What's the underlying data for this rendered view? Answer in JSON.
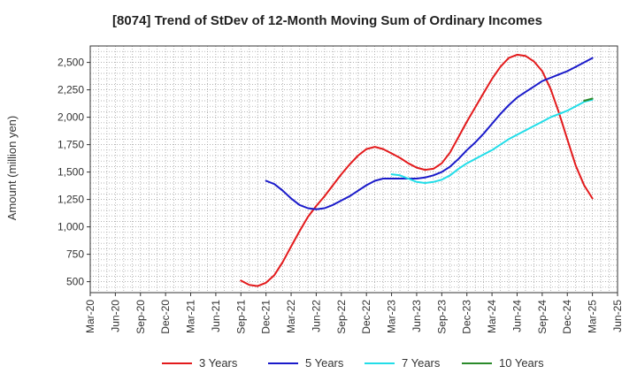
{
  "chart_data": {
    "type": "line",
    "title": "[8074]  Trend of StDev of 12-Month Moving Sum of Ordinary Incomes",
    "xlabel": "",
    "ylabel": "Amount (million yen)",
    "x_ticks": [
      "Mar-20",
      "Jun-20",
      "Sep-20",
      "Dec-20",
      "Mar-21",
      "Jun-21",
      "Sep-21",
      "Dec-21",
      "Mar-22",
      "Jun-22",
      "Sep-22",
      "Dec-22",
      "Mar-23",
      "Jun-23",
      "Sep-23",
      "Dec-23",
      "Mar-24",
      "Jun-24",
      "Sep-24",
      "Dec-24",
      "Mar-25",
      "Jun-25"
    ],
    "y_ticks": [
      500,
      750,
      1000,
      1250,
      1500,
      1750,
      2000,
      2250,
      2500
    ],
    "y_tick_labels": [
      "500",
      "750",
      "1,000",
      "1,250",
      "1,500",
      "1,750",
      "2,000",
      "2,250",
      "2,500"
    ],
    "ylim": [
      400,
      2650
    ],
    "grid": true,
    "legend_position": "bottom",
    "series": [
      {
        "name": "3 Years",
        "color": "#e31a1c",
        "values": [
          510,
          470,
          460,
          490,
          560,
          680,
          820,
          960,
          1090,
          1190,
          1280,
          1380,
          1480,
          1570,
          1650,
          1710,
          1730,
          1710,
          1670,
          1630,
          1580,
          1540,
          1520,
          1530,
          1580,
          1680,
          1820,
          1960,
          2090,
          2220,
          2350,
          2460,
          2540,
          2570,
          2560,
          2510,
          2420,
          2260,
          2040,
          1800,
          1560,
          1380,
          1260
        ]
      },
      {
        "name": "5 Years",
        "color": "#1a1aca",
        "values": [
          1420,
          1390,
          1330,
          1260,
          1200,
          1170,
          1160,
          1170,
          1200,
          1240,
          1280,
          1330,
          1380,
          1420,
          1440,
          1440,
          1440,
          1440,
          1440,
          1450,
          1470,
          1500,
          1550,
          1620,
          1700,
          1770,
          1850,
          1940,
          2030,
          2110,
          2180,
          2230,
          2280,
          2330,
          2360,
          2390,
          2420,
          2460,
          2500,
          2540
        ]
      },
      {
        "name": "7 Years",
        "color": "#22dde8",
        "values": [
          1480,
          1470,
          1440,
          1410,
          1400,
          1410,
          1430,
          1470,
          1530,
          1580,
          1620,
          1660,
          1700,
          1750,
          1800,
          1840,
          1880,
          1920,
          1960,
          2000,
          2030,
          2060,
          2100,
          2140,
          2160
        ]
      },
      {
        "name": "10 Years",
        "color": "#2a8a2a",
        "values": [
          2150,
          2170
        ]
      }
    ]
  }
}
